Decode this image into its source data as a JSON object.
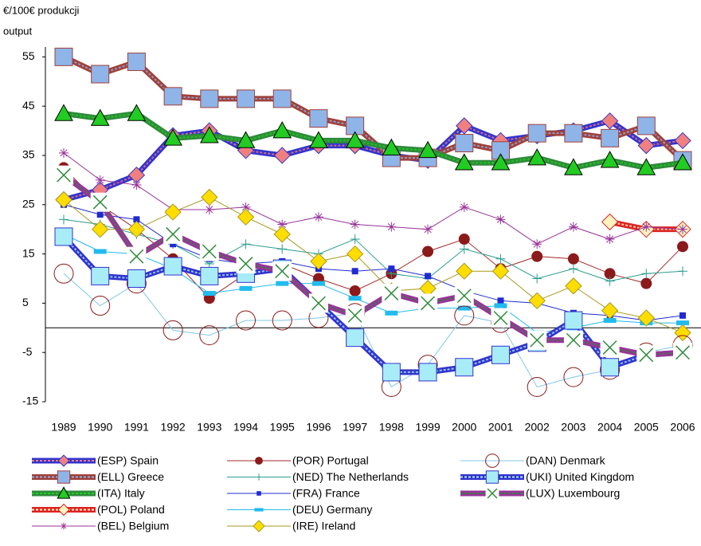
{
  "chart_data": {
    "type": "line",
    "y_label": [
      "€/100€ produkcji",
      "output"
    ],
    "categories": [
      "1989",
      "1990",
      "1991",
      "1992",
      "1993",
      "1994",
      "1995",
      "1996",
      "1997",
      "1998",
      "1999",
      "2000",
      "2001",
      "2002",
      "2003",
      "2004",
      "2005",
      "2006"
    ],
    "ylim": [
      -15,
      57
    ],
    "yticks": [
      55,
      45,
      35,
      25,
      15,
      5,
      -5,
      -15
    ],
    "series": [
      {
        "name": "(ESP) Spain",
        "color": "#3333cc",
        "fill": "#f08080",
        "marker": "diamond",
        "band": true,
        "values": [
          26,
          28,
          31,
          39,
          40,
          36,
          35,
          37,
          37,
          35,
          34,
          41,
          38,
          39,
          40,
          42,
          37,
          38
        ]
      },
      {
        "name": "(ELL) Greece",
        "color": "#a0403a",
        "fill": "#8fb4e8",
        "marker": "square",
        "band": true,
        "values": [
          55,
          51.5,
          54,
          47,
          46.5,
          46.5,
          46.5,
          42.5,
          41,
          34.5,
          34.5,
          37.5,
          36,
          39.5,
          39.5,
          38.5,
          41,
          34
        ]
      },
      {
        "name": "(ITA) Italy",
        "color": "#2e8b3a",
        "fill": "#22cc22",
        "marker": "triangle",
        "band": true,
        "values": [
          43.5,
          42.5,
          43.5,
          38.5,
          39,
          38,
          40,
          38,
          38,
          36.5,
          36,
          33.5,
          33.5,
          34.5,
          32.5,
          34,
          32.5,
          33.5
        ]
      },
      {
        "name": "(POL) Poland",
        "color": "#dd2222",
        "fill": "#fff3c0",
        "marker": "diamond",
        "band": true,
        "values": [
          null,
          null,
          null,
          null,
          null,
          null,
          null,
          null,
          null,
          null,
          null,
          null,
          null,
          null,
          null,
          21.5,
          20,
          20
        ]
      },
      {
        "name": "(BEL) Belgium",
        "color": "#993399",
        "fill": "#993399",
        "marker": "star",
        "band": false,
        "values": [
          35.5,
          30,
          29,
          24,
          24,
          24.5,
          21,
          22.5,
          21,
          20.5,
          20,
          24.5,
          22,
          17,
          20.5,
          18,
          20.5,
          20
        ]
      },
      {
        "name": "(POR) Portugal",
        "color": "#a52a2a",
        "fill": "#8b1a1a",
        "marker": "circle",
        "band": false,
        "values": [
          32.5,
          25,
          20,
          14,
          6,
          11,
          13,
          10,
          7.5,
          11,
          15.5,
          18,
          12,
          14.5,
          14,
          11,
          9,
          16.5
        ]
      },
      {
        "name": "(NED) The Netherlands",
        "color": "#2a9d8f",
        "fill": "#2a9d8f",
        "marker": "plus",
        "band": false,
        "values": [
          22,
          21,
          19,
          17,
          13,
          17,
          16,
          15,
          18,
          11,
          10,
          16,
          14,
          10,
          12,
          9.5,
          11,
          11.5
        ]
      },
      {
        "name": "(FRA) France",
        "color": "#1f2bd1",
        "fill": "#1f2bd1",
        "marker": "smallsquare",
        "band": false,
        "values": [
          25,
          23,
          22,
          17,
          14,
          13,
          13.5,
          12,
          11.5,
          12,
          10.5,
          7.5,
          5.5,
          5,
          3,
          2.5,
          1.5,
          2.5
        ]
      },
      {
        "name": "(DEU) Germany",
        "color": "#22bbee",
        "fill": "#22bbee",
        "marker": "dash",
        "band": false,
        "values": [
          19,
          15.5,
          15,
          12,
          7,
          8,
          9,
          9,
          6,
          3,
          4,
          4,
          4.5,
          -1,
          0,
          1.5,
          1,
          1
        ]
      },
      {
        "name": "(IRE) Ireland",
        "color": "#a89a20",
        "fill": "#ffdd00",
        "marker": "diamond",
        "band": false,
        "values": [
          26,
          20,
          20,
          23.5,
          26.5,
          22.5,
          19,
          13.5,
          15,
          7.5,
          8,
          11.5,
          11.5,
          5.5,
          8.5,
          3.5,
          2,
          -1
        ]
      },
      {
        "name": "(DAN) Denmark",
        "color": "#7fc8e8",
        "fill": "none",
        "marker": "ring",
        "band": false,
        "values": [
          11,
          4.5,
          9,
          -0.5,
          -1.5,
          1.5,
          1.5,
          2,
          3,
          -12,
          -7.5,
          2.5,
          1,
          -12,
          -10,
          -8.5,
          -5,
          -3.5
        ]
      },
      {
        "name": "(UKI) United Kingdom",
        "color": "#3333cc",
        "fill": "#a8ecf8",
        "marker": "square",
        "band": true,
        "values": [
          18.5,
          10.5,
          10,
          12.5,
          10.5,
          11,
          12,
          5,
          -2,
          -9,
          -9,
          -8,
          -5.5,
          -3,
          1.5,
          -8,
          -5.5,
          -5
        ]
      },
      {
        "name": "(LUX) Luxembourg",
        "color": "#993399",
        "fill": "#2e8b3a",
        "marker": "x",
        "band": true,
        "values": [
          31,
          25.5,
          14.5,
          19,
          15.5,
          13,
          11.5,
          5,
          2.5,
          7,
          5,
          6.5,
          2,
          -2.5,
          -2.5,
          -4,
          -5.5,
          -5
        ]
      }
    ]
  }
}
